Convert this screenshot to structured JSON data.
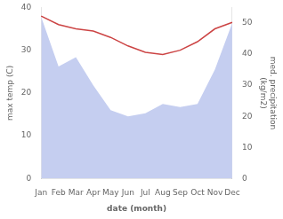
{
  "chart_data": {
    "type": "line",
    "categories": [
      "Jan",
      "Feb",
      "Mar",
      "Apr",
      "May",
      "Jun",
      "Jul",
      "Aug",
      "Sep",
      "Oct",
      "Nov",
      "Dec"
    ],
    "xlabel": "date (month)",
    "ylabel": "max temp (C)",
    "y2label": "med. precipitation\n(kg/m2)",
    "series": [
      {
        "type": "area",
        "axis": "y2",
        "color": "#c5cef0",
        "values": [
          52,
          36,
          39,
          30,
          22,
          20,
          21,
          24,
          23,
          24,
          35,
          50
        ]
      },
      {
        "type": "line",
        "color": "#cc4444",
        "values": [
          38,
          36,
          35,
          34.5,
          33,
          31,
          29.5,
          29,
          30,
          32,
          35,
          36.5
        ]
      }
    ],
    "ylim": [
      0,
      40
    ],
    "yticks": [
      0,
      10,
      20,
      30,
      40
    ],
    "y2lim": [
      0,
      55
    ],
    "y2ticks": [
      0,
      10,
      20,
      30,
      40,
      50
    ],
    "grid": false
  }
}
